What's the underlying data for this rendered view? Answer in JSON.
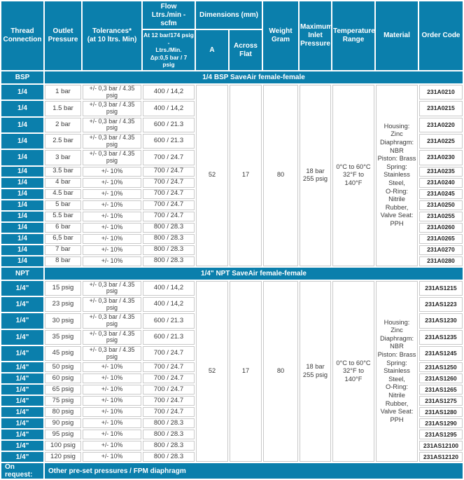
{
  "accent_color": "#0b7fac",
  "grid_color": "#c9c9c9",
  "header": {
    "thread_connection": "Thread\nConnection",
    "outlet_pressure": "Outlet\nPressure",
    "tolerances": "Tolerances*\n(at 10 ltrs. Min)",
    "flow_title": "Flow\nLtrs./min - scfm",
    "flow_sub": "At 12 bar/174 psig -\nLtrs./Min.\nΔp:0,5 bar / 7 psig",
    "dimensions": "Dimensions (mm)",
    "dim_a": "A",
    "dim_across_flat": "Across Flat",
    "weight": "Weight\nGram",
    "max_inlet": "Maximum\nInlet\nPressure",
    "temp_range": "Temperature\nRange",
    "material": "Material",
    "order_code": "Order Code"
  },
  "sections": [
    {
      "label": "BSP",
      "title": "1/4 BSP SaveAir female-female",
      "shared": {
        "dim_a": "52",
        "across_flat": "17",
        "weight": "80",
        "max_inlet": "18 bar\n255 psig",
        "temp_range": "0°C to 60°C\n32°F to 140°F",
        "material": "Housing: Zinc\nDiaphragm: NBR\nPiston: Brass\nSpring: Stainless\nSteel,\nO-Ring: Nitrile\nRubber,\nValve Seat: PPH"
      },
      "rows": [
        {
          "thread": "1/4",
          "pressure": "1 bar",
          "tolerance": "+/- 0,3 bar / 4.35 psig",
          "flow": "400 / 14,2",
          "code": "231A0210"
        },
        {
          "thread": "1/4",
          "pressure": "1.5 bar",
          "tolerance": "+/- 0,3 bar / 4.35 psig",
          "flow": "400 / 14,2",
          "code": "231A0215"
        },
        {
          "thread": "1/4",
          "pressure": "2 bar",
          "tolerance": "+/- 0,3 bar / 4.35 psig",
          "flow": "600 / 21.3",
          "code": "231A0220"
        },
        {
          "thread": "1/4",
          "pressure": "2.5 bar",
          "tolerance": "+/- 0,3 bar / 4.35 psig",
          "flow": "600 / 21.3",
          "code": "231A0225"
        },
        {
          "thread": "1/4",
          "pressure": "3 bar",
          "tolerance": "+/- 0,3 bar / 4.35 psig",
          "flow": "700 / 24.7",
          "code": "231A0230"
        },
        {
          "thread": "1/4",
          "pressure": "3.5 bar",
          "tolerance": "+/- 10%",
          "flow": "700 / 24.7",
          "code": "231A0235"
        },
        {
          "thread": "1/4",
          "pressure": "4 bar",
          "tolerance": "+/- 10%",
          "flow": "700 / 24.7",
          "code": "231A0240"
        },
        {
          "thread": "1/4",
          "pressure": "4.5 bar",
          "tolerance": "+/- 10%",
          "flow": "700 / 24.7",
          "code": "231A0245"
        },
        {
          "thread": "1/4",
          "pressure": "5 bar",
          "tolerance": "+/- 10%",
          "flow": "700 / 24.7",
          "code": "231A0250"
        },
        {
          "thread": "1/4",
          "pressure": "5.5 bar",
          "tolerance": "+/- 10%",
          "flow": "700 / 24.7",
          "code": "231A0255"
        },
        {
          "thread": "1/4",
          "pressure": "6 bar",
          "tolerance": "+/- 10%",
          "flow": "800 / 28.3",
          "code": "231A0260"
        },
        {
          "thread": "1/4",
          "pressure": "6,5 bar",
          "tolerance": "+/- 10%",
          "flow": "800 / 28.3",
          "code": "231A0265"
        },
        {
          "thread": "1/4",
          "pressure": "7 bar",
          "tolerance": "+/- 10%",
          "flow": "800 / 28.3",
          "code": "231A0270"
        },
        {
          "thread": "1/4",
          "pressure": "8 bar",
          "tolerance": "+/- 10%",
          "flow": "800 / 28.3",
          "code": "231A0280"
        }
      ]
    },
    {
      "label": "NPT",
      "title": "1/4\" NPT SaveAir female-female",
      "shared": {
        "dim_a": "52",
        "across_flat": "17",
        "weight": "80",
        "max_inlet": "18 bar\n255 psig",
        "temp_range": "0°C to 60°C\n32°F to 140°F",
        "material": "Housing: Zinc\nDiaphragm: NBR\nPiston: Brass\nSpring: Stainless\nSteel,\nO-Ring: Nitrile\nRubber,\nValve Seat: PPH"
      },
      "rows": [
        {
          "thread": "1/4\"",
          "pressure": "15 psig",
          "tolerance": "+/- 0,3 bar / 4.35 psig",
          "flow": "400 / 14,2",
          "code": "231AS1215"
        },
        {
          "thread": "1/4\"",
          "pressure": "23 psig",
          "tolerance": "+/- 0,3 bar / 4.35 psig",
          "flow": "400 / 14,2",
          "code": "231AS1223"
        },
        {
          "thread": "1/4\"",
          "pressure": "30 psig",
          "tolerance": "+/- 0,3 bar / 4.35 psig",
          "flow": "600 / 21.3",
          "code": "231AS1230"
        },
        {
          "thread": "1/4\"",
          "pressure": "35 psig",
          "tolerance": "+/- 0,3 bar / 4.35 psig",
          "flow": "600 / 21.3",
          "code": "231AS1235"
        },
        {
          "thread": "1/4\"",
          "pressure": "45 psig",
          "tolerance": "+/- 0,3 bar / 4.35 psig",
          "flow": "700 / 24.7",
          "code": "231AS1245"
        },
        {
          "thread": "1/4\"",
          "pressure": "50 psig",
          "tolerance": "+/- 10%",
          "flow": "700 / 24.7",
          "code": "231AS1250"
        },
        {
          "thread": "1/4\"",
          "pressure": "60 psig",
          "tolerance": "+/- 10%",
          "flow": "700 / 24.7",
          "code": "231AS1260"
        },
        {
          "thread": "1/4\"",
          "pressure": "65 psig",
          "tolerance": "+/- 10%",
          "flow": "700 / 24.7",
          "code": "231AS1265"
        },
        {
          "thread": "1/4\"",
          "pressure": "75 psig",
          "tolerance": "+/- 10%",
          "flow": "700 / 24.7",
          "code": "231AS1275"
        },
        {
          "thread": "1/4\"",
          "pressure": "80 psig",
          "tolerance": "+/- 10%",
          "flow": "700 / 24.7",
          "code": "231AS1280"
        },
        {
          "thread": "1/4\"",
          "pressure": "90 psig",
          "tolerance": "+/- 10%",
          "flow": "800 / 28.3",
          "code": "231AS1290"
        },
        {
          "thread": "1/4\"",
          "pressure": "95 psig",
          "tolerance": "+/- 10%",
          "flow": "800 / 28.3",
          "code": "231AS1295"
        },
        {
          "thread": "1/4\"",
          "pressure": "100 psig",
          "tolerance": "+/- 10%",
          "flow": "800 / 28.3",
          "code": "231AS12100"
        },
        {
          "thread": "1/4\"",
          "pressure": "120 psig",
          "tolerance": "+/- 10%",
          "flow": "800 / 28.3",
          "code": "231AS12120"
        }
      ]
    }
  ],
  "footer": {
    "label": "On request:",
    "text": "Other pre-set pressures / FPM diaphragm"
  }
}
